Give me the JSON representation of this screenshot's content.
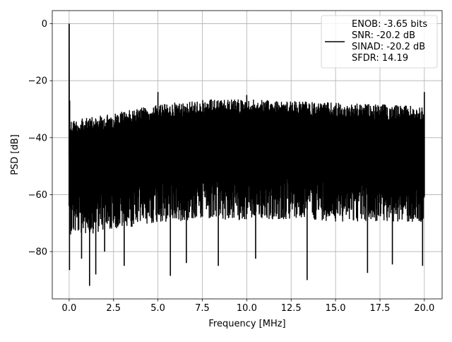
{
  "chart_data": {
    "type": "line",
    "title": "",
    "xlabel": "Frequency [MHz]",
    "ylabel": "PSD [dB]",
    "xlim": [
      -0.95,
      21.0
    ],
    "ylim": [
      -96.6,
      4.6
    ],
    "xticks": [
      0.0,
      2.5,
      5.0,
      7.5,
      10.0,
      12.5,
      15.0,
      17.5,
      20.0
    ],
    "xtick_labels": [
      "0.0",
      "2.5",
      "5.0",
      "7.5",
      "10.0",
      "12.5",
      "15.0",
      "17.5",
      "20.0"
    ],
    "yticks": [
      0,
      -20,
      -40,
      -60,
      -80
    ],
    "ytick_labels": [
      "0",
      "−20",
      "−40",
      "−60",
      "−80"
    ],
    "grid": true,
    "legend_position": "top-right",
    "series": [
      {
        "color": "#000000",
        "legend_lines": [
          "ENOB: -3.65 bits",
          "SNR: -20.2 dB",
          "SINAD: -20.2 dB",
          "SFDR: 14.19"
        ],
        "description": "Dense noise-floor PSD with a 0 dB peak at DC",
        "peak_at_dc_db": 0,
        "upper_envelope": {
          "x": [
            0.05,
            0.5,
            1.0,
            2.0,
            3.0,
            4.0,
            5.0,
            6.0,
            7.0,
            8.0,
            9.0,
            10.0,
            11.0,
            12.0,
            13.0,
            14.0,
            15.0,
            16.0,
            17.0,
            18.0,
            19.0,
            20.0
          ],
          "y": [
            -33.5,
            -33.5,
            -33.0,
            -32.0,
            -30.5,
            -29.5,
            -28.5,
            -27.5,
            -27.0,
            -26.5,
            -26.5,
            -26.5,
            -26.8,
            -27.0,
            -27.2,
            -27.4,
            -27.7,
            -28.0,
            -28.2,
            -28.4,
            -28.7,
            -29.0
          ]
        },
        "lower_envelope": {
          "x": [
            0.05,
            0.5,
            1.0,
            2.0,
            3.0,
            4.0,
            5.0,
            6.0,
            7.0,
            8.0,
            9.0,
            10.0,
            11.0,
            12.0,
            13.0,
            14.0,
            15.0,
            16.0,
            17.0,
            18.0,
            19.0,
            20.0
          ],
          "y": [
            -74,
            -74,
            -74,
            -73,
            -72,
            -71,
            -70,
            -69.5,
            -69,
            -69,
            -69,
            -69,
            -69,
            -69,
            -69,
            -69,
            -69.5,
            -69.5,
            -70,
            -70,
            -70,
            -70.5
          ]
        },
        "spikes_up": [
          {
            "x": 0.0,
            "y": 0.0
          },
          {
            "x": 0.03,
            "y": -27.0
          },
          {
            "x": 5.0,
            "y": -24.0
          },
          {
            "x": 10.0,
            "y": -25.0
          },
          {
            "x": 20.0,
            "y": -24.0
          }
        ],
        "spikes_down": [
          {
            "x": 0.02,
            "y": -86.5
          },
          {
            "x": 0.7,
            "y": -82.5
          },
          {
            "x": 1.15,
            "y": -92.0
          },
          {
            "x": 1.5,
            "y": -88.0
          },
          {
            "x": 2.0,
            "y": -80.0
          },
          {
            "x": 3.1,
            "y": -85.0
          },
          {
            "x": 5.7,
            "y": -88.5
          },
          {
            "x": 6.6,
            "y": -84.0
          },
          {
            "x": 8.4,
            "y": -85.0
          },
          {
            "x": 10.5,
            "y": -82.5
          },
          {
            "x": 13.4,
            "y": -90.0
          },
          {
            "x": 16.8,
            "y": -87.5
          },
          {
            "x": 18.2,
            "y": -84.5
          },
          {
            "x": 19.9,
            "y": -85.0
          }
        ]
      }
    ]
  }
}
